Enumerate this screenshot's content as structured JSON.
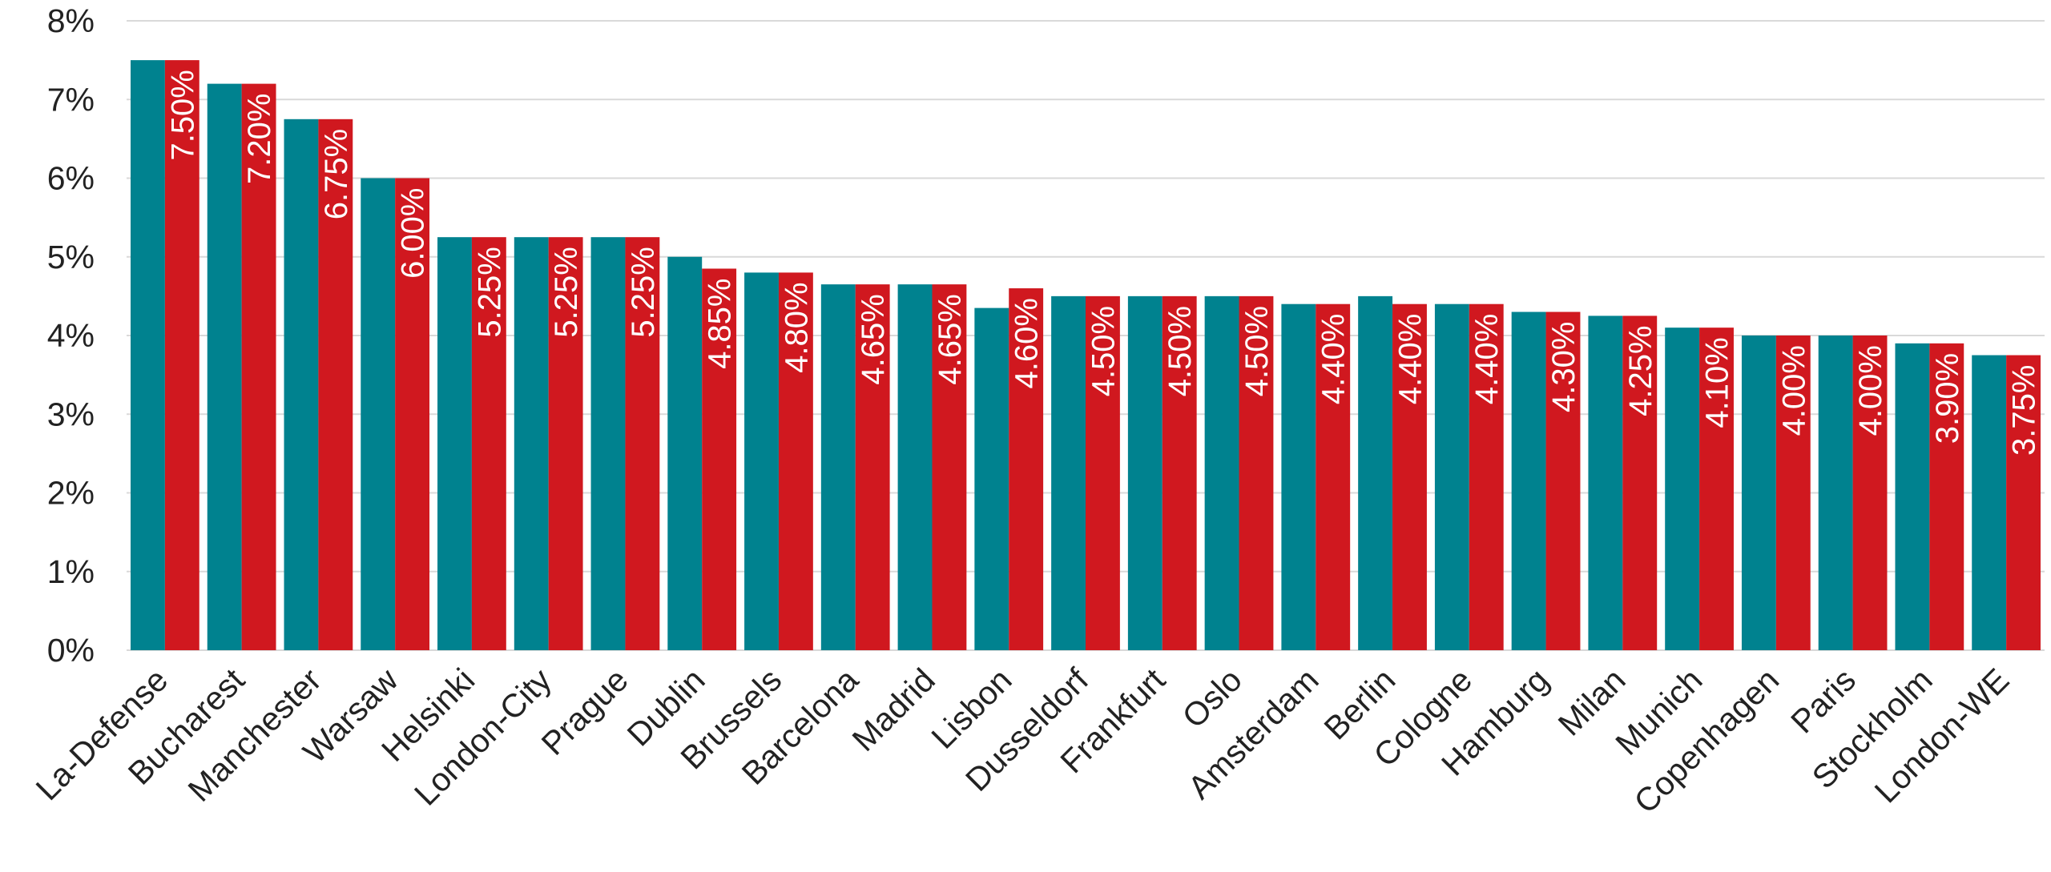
{
  "chart_data": {
    "type": "bar",
    "title": "",
    "xlabel": "",
    "ylabel": "",
    "ylim": [
      0,
      8
    ],
    "y_ticks": [
      "0%",
      "1%",
      "2%",
      "3%",
      "4%",
      "5%",
      "6%",
      "7%",
      "8%"
    ],
    "grid": true,
    "legend": "none",
    "categories": [
      "La-Defense",
      "Bucharest",
      "Manchester",
      "Warsaw",
      "Helsinki",
      "London-City",
      "Prague",
      "Dublin",
      "Brussels",
      "Barcelona",
      "Madrid",
      "Lisbon",
      "Dusseldorf",
      "Frankfurt",
      "Oslo",
      "Amsterdam",
      "Berlin",
      "Cologne",
      "Hamburg",
      "Milan",
      "Munich",
      "Copenhagen",
      "Paris",
      "Stockholm",
      "London-WE"
    ],
    "series": [
      {
        "color": "#00828f",
        "values": [
          7.5,
          7.2,
          6.75,
          6.0,
          5.25,
          5.25,
          5.25,
          5.0,
          4.8,
          4.65,
          4.65,
          4.35,
          4.5,
          4.5,
          4.5,
          4.4,
          4.5,
          4.4,
          4.3,
          4.25,
          4.1,
          4.0,
          4.0,
          3.9,
          3.75
        ]
      },
      {
        "color": "#d0181f",
        "values": [
          7.5,
          7.2,
          6.75,
          6.0,
          5.25,
          5.25,
          5.25,
          4.85,
          4.8,
          4.65,
          4.65,
          4.6,
          4.5,
          4.5,
          4.5,
          4.4,
          4.4,
          4.4,
          4.3,
          4.25,
          4.1,
          4.0,
          4.0,
          3.9,
          3.75
        ],
        "data_labels": [
          "7.50%",
          "7.20%",
          "6.75%",
          "6.00%",
          "5.25%",
          "5.25%",
          "5.25%",
          "4.85%",
          "4.80%",
          "4.65%",
          "4.65%",
          "4.60%",
          "4.50%",
          "4.50%",
          "4.50%",
          "4.40%",
          "4.40%",
          "4.40%",
          "4.30%",
          "4.25%",
          "4.10%",
          "4.00%",
          "4.00%",
          "3.90%",
          "3.75%"
        ]
      }
    ]
  }
}
